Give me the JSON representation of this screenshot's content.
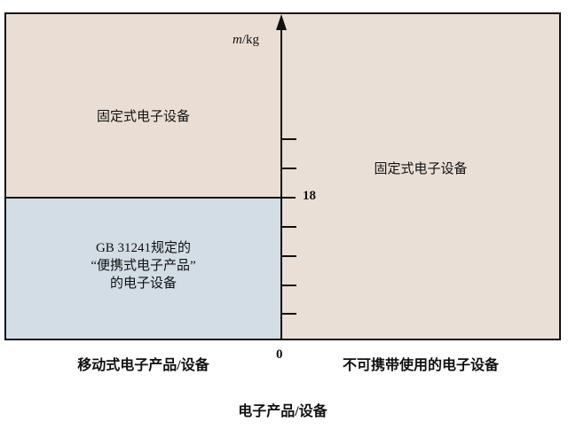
{
  "axis": {
    "y_label_var": "m",
    "y_label_unit": "/kg",
    "threshold": "18",
    "origin": "0"
  },
  "regions": {
    "top_left": "固定式电子设备",
    "right": "固定式电子设备",
    "bottom_left_lines": [
      "GB 31241规定的",
      "“便携式电子产品”",
      "的电子设备"
    ]
  },
  "labels": {
    "left_category": "移动式电子产品/设备",
    "right_category": "不可携带使用的电子设备",
    "x_title": "电子产品/设备"
  },
  "colors": {
    "fixed_fill": "#eaded4",
    "portable_fill": "#d3dde6",
    "line": "#111111"
  }
}
